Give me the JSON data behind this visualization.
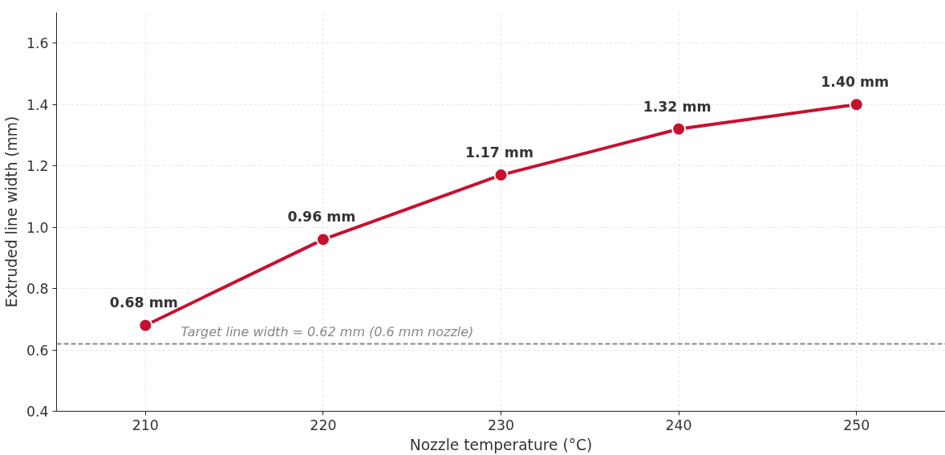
{
  "chart_data": {
    "type": "line",
    "xlabel": "Nozzle temperature (°C)",
    "ylabel": "Extruded line width (mm)",
    "x": [
      210,
      220,
      230,
      240,
      250
    ],
    "series": [
      {
        "color": "#c8102e",
        "values": [
          0.68,
          0.96,
          1.17,
          1.32,
          1.4
        ],
        "value_labels": [
          "0.68 mm",
          "0.96 mm",
          "1.17 mm",
          "1.32 mm",
          "1.40 mm"
        ]
      }
    ],
    "xlim": [
      205,
      255
    ],
    "xticks": [
      210,
      220,
      230,
      240,
      250
    ],
    "ylim": [
      0.4,
      1.7
    ],
    "yticks": [
      {
        "value": 0.4,
        "label": "0.4"
      },
      {
        "value": 0.6,
        "label": "0.6"
      },
      {
        "value": 0.8,
        "label": "0.8"
      },
      {
        "value": 1.0,
        "label": "1.0"
      },
      {
        "value": 1.2,
        "label": "1.2"
      },
      {
        "value": 1.4,
        "label": "1.4"
      },
      {
        "value": 1.6,
        "label": "1.6"
      }
    ],
    "ref_lines": [
      {
        "axis": "y",
        "value": 0.62,
        "label": "Target line width = 0.62 mm  (0.6 mm nozzle)",
        "color": "#888888",
        "line_style": "dashed"
      }
    ],
    "grid": true,
    "marker": "circle",
    "line_style": "solid"
  }
}
